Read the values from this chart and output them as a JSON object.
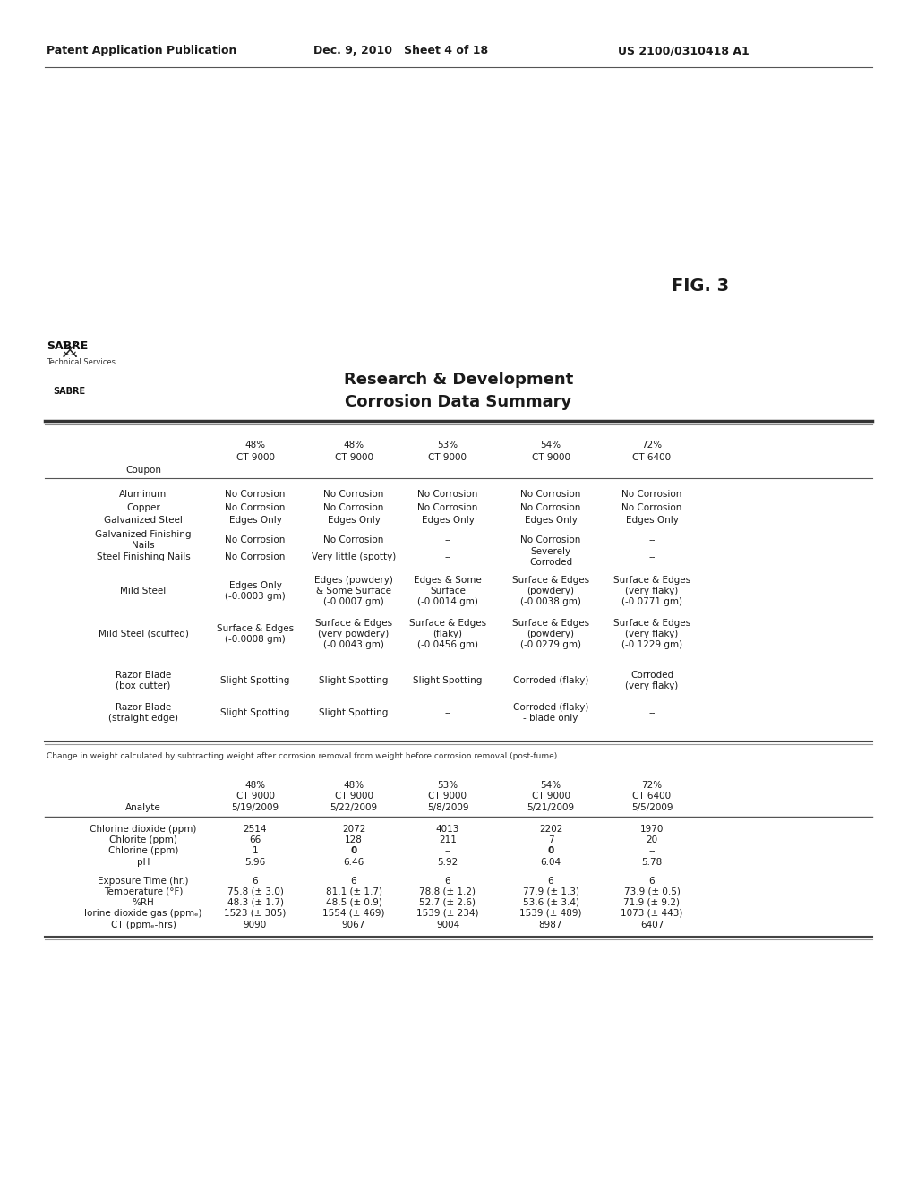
{
  "header_left": "Patent Application Publication",
  "header_mid": "Dec. 9, 2010   Sheet 4 of 18",
  "header_right": "US 2100/0310418 A1",
  "fig_label": "FIG. 3",
  "table1_title_line1": "Research & Development",
  "table1_title_line2": "Corrosion Data Summary",
  "footnote": "Change in weight calculated by subtracting weight after corrosion removal from weight before corrosion removal (post-fume).",
  "background_color": "#ffffff",
  "text_color": "#1a1a1a",
  "line_color": "#555555",
  "col_pcts": [
    "48%",
    "48%",
    "53%",
    "54%",
    "72%"
  ],
  "col_cts": [
    "CT 9000",
    "CT 9000",
    "CT 9000",
    "CT 9000",
    "CT 6400"
  ],
  "t1_coupon_hdr": "Coupon",
  "t1_rows": [
    [
      "Aluminum",
      "No Corrosion",
      "No Corrosion",
      "No Corrosion",
      "No Corrosion",
      "No Corrosion"
    ],
    [
      "Copper",
      "No Corrosion",
      "No Corrosion",
      "No Corrosion",
      "No Corrosion",
      "No Corrosion"
    ],
    [
      "Galvanized Steel",
      "Edges Only",
      "Edges Only",
      "Edges Only",
      "Edges Only",
      "Edges Only"
    ],
    [
      "Galvanized Finishing\nNails",
      "No Corrosion",
      "No Corrosion",
      "--",
      "No Corrosion",
      "--"
    ],
    [
      "Steel Finishing Nails",
      "No Corrosion",
      "Very little (spotty)",
      "--",
      "Severely\nCorroded",
      "--"
    ],
    [
      "Mild Steel",
      "Edges Only\n(-0.0003 gm)",
      "Edges (powdery)\n& Some Surface\n(-0.0007 gm)",
      "Edges & Some\nSurface\n(-0.0014 gm)",
      "Surface & Edges\n(powdery)\n(-0.0038 gm)",
      "Surface & Edges\n(very flaky)\n(-0.0771 gm)"
    ],
    [
      "Mild Steel (scuffed)",
      "Surface & Edges\n(-0.0008 gm)",
      "Surface & Edges\n(very powdery)\n(-0.0043 gm)",
      "Surface & Edges\n(flaky)\n(-0.0456 gm)",
      "Surface & Edges\n(powdery)\n(-0.0279 gm)",
      "Surface & Edges\n(very flaky)\n(-0.1229 gm)"
    ],
    [
      "Razor Blade\n(box cutter)",
      "Slight Spotting",
      "Slight Spotting",
      "Slight Spotting",
      "Corroded (flaky)",
      "Corroded\n(very flaky)"
    ],
    [
      "Razor Blade\n(straight edge)",
      "Slight Spotting",
      "Slight Spotting",
      "--",
      "Corroded (flaky)\n- blade only",
      "--"
    ]
  ],
  "t2_dates": [
    "5/19/2009",
    "5/22/2009",
    "5/8/2009",
    "5/21/2009",
    "5/5/2009"
  ],
  "t2_analyte_hdr": "Analyte",
  "t2_rows": [
    [
      "Chlorine dioxide (ppm)",
      "2514",
      "2072",
      "4013",
      "2202",
      "1970"
    ],
    [
      "Chlorite (ppm)",
      "66",
      "128",
      "211",
      "7",
      "20"
    ],
    [
      "Chlorine (ppm)",
      "1",
      "0",
      "--",
      "0",
      "--"
    ],
    [
      "pH",
      "5.96",
      "6.46",
      "5.92",
      "6.04",
      "5.78"
    ],
    [
      "Exposure Time (hr.)",
      "6",
      "6",
      "6",
      "6",
      "6"
    ],
    [
      "Temperature (°F)",
      "75.8 (± 3.0)",
      "81.1 (± 1.7)",
      "78.8 (± 1.2)",
      "77.9 (± 1.3)",
      "73.9 (± 0.5)"
    ],
    [
      "%RH",
      "48.3 (± 1.7)",
      "48.5 (± 0.9)",
      "52.7 (± 2.6)",
      "53.6 (± 3.4)",
      "71.9 (± 9.2)"
    ],
    [
      "lorine dioxide gas (ppmₑ)",
      "1523 (± 305)",
      "1554 (± 469)",
      "1539 (± 234)",
      "1539 (± 489)",
      "1073 (± 443)"
    ],
    [
      "CT (ppmₑ-hrs)",
      "9090",
      "9067",
      "9004",
      "8987",
      "6407"
    ]
  ]
}
